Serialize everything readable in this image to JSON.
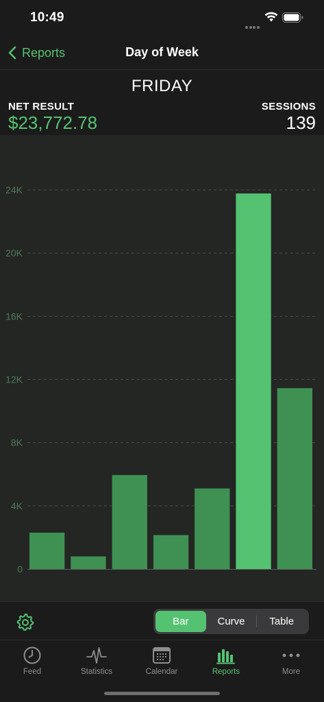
{
  "status": {
    "time": "10:49"
  },
  "nav": {
    "back_label": "Reports",
    "title": "Day of Week"
  },
  "summary": {
    "day": "FRIDAY",
    "net_label": "NET RESULT",
    "net_value": "$23,772.78",
    "sessions_label": "SESSIONS",
    "sessions_value": "139"
  },
  "chart_data": {
    "type": "bar",
    "categories": [
      "",
      "",
      "",
      "",
      "",
      "",
      ""
    ],
    "values": [
      2300,
      800,
      5950,
      2150,
      5100,
      23772.78,
      11450
    ],
    "highlight_index": 5,
    "ylim": [
      0,
      24000
    ],
    "yticks": [
      {
        "value": 0,
        "label": "0"
      },
      {
        "value": 4000,
        "label": "4K"
      },
      {
        "value": 8000,
        "label": "8K"
      },
      {
        "value": 12000,
        "label": "12K"
      },
      {
        "value": 16000,
        "label": "16K"
      },
      {
        "value": 20000,
        "label": "20K"
      },
      {
        "value": 24000,
        "label": "24K"
      }
    ],
    "grid": true,
    "colors": {
      "bar": "#3e9152",
      "highlight": "#55c271",
      "grid": "#4a4e4a",
      "tick": "#4e7a58"
    }
  },
  "controls": {
    "segments": [
      {
        "label": "Bar",
        "active": true
      },
      {
        "label": "Curve",
        "active": false
      },
      {
        "label": "Table",
        "active": false
      }
    ]
  },
  "tabs": [
    {
      "label": "Feed",
      "icon": "clock-icon"
    },
    {
      "label": "Statistics",
      "icon": "pulse-icon"
    },
    {
      "label": "Calendar",
      "icon": "calendar-icon"
    },
    {
      "label": "Reports",
      "icon": "bar-chart-icon",
      "active": true
    },
    {
      "label": "More",
      "icon": "more-icon"
    }
  ],
  "colors": {
    "accent": "#55c271",
    "background": "#1b1b1b",
    "chart_bg": "#242624"
  }
}
